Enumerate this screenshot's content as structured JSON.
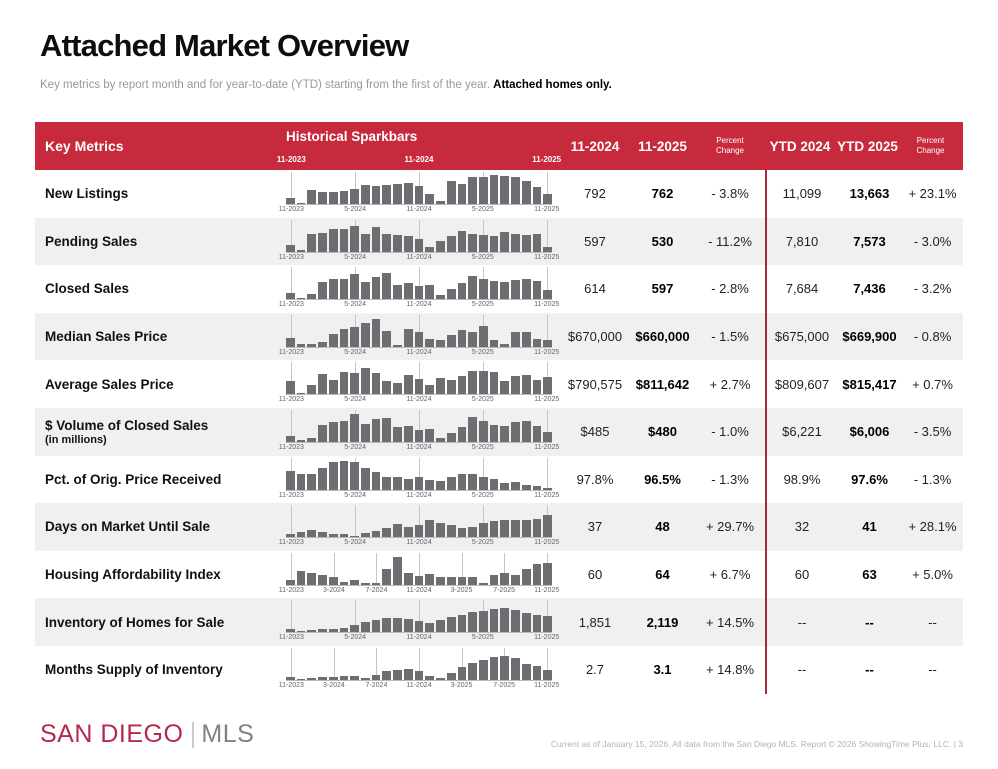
{
  "page": {
    "title": "Attached Market Overview",
    "subtitle": "Key metrics by report month and for year-to-date (YTD) starting from the first of the year.",
    "subtitle_emphasis": "Attached homes only."
  },
  "colors": {
    "header_bg": "#C72A3C",
    "ytd_divider": "#AB2740",
    "bar_gray": "#6D6E71",
    "alt_row_bg": "#F0F0F1",
    "logo_red": "#B5294C",
    "logo_gray": "#808285"
  },
  "table": {
    "header": {
      "key_metrics_label": "Key Metrics",
      "sparkbars_label": "Historical Sparkbars",
      "sparkbar_years": [
        "11-2023",
        "11-2024",
        "11-2025"
      ],
      "col_month_1": "11-2024",
      "col_month_2": "11-2025",
      "col_pct_line1": "Percent",
      "col_pct_line2": "Change",
      "col_ytd_1": "YTD 2024",
      "col_ytd_2": "YTD 2025"
    },
    "rows": [
      {
        "metric": "New Listings",
        "note": "",
        "m1": "792",
        "m2": "762",
        "mc": "- 3.8%",
        "y1": "11,099",
        "y2": "13,663",
        "yc": "+ 23.1%",
        "spark": {
          "type": "bar",
          "ticks": [
            "11-2023",
            "5-2024",
            "11-2024",
            "5-2025",
            "11-2025"
          ],
          "bars": [
            20,
            5,
            48,
            40,
            43,
            46,
            53,
            65,
            62,
            65,
            68,
            73,
            62,
            33,
            12,
            80,
            68,
            92,
            94,
            100,
            96,
            92,
            78,
            60,
            35
          ]
        }
      },
      {
        "metric": "Pending Sales",
        "note": "",
        "m1": "597",
        "m2": "530",
        "mc": "- 11.2%",
        "y1": "7,810",
        "y2": "7,573",
        "yc": "- 3.0%",
        "spark": {
          "type": "bar",
          "ticks": [
            "11-2023",
            "5-2024",
            "11-2024",
            "5-2025",
            "11-2025"
          ],
          "bars": [
            22,
            4,
            60,
            64,
            77,
            79,
            88,
            62,
            86,
            62,
            58,
            55,
            42,
            15,
            38,
            55,
            72,
            60,
            58,
            55,
            68,
            62,
            58,
            60,
            15
          ]
        }
      },
      {
        "metric": "Closed Sales",
        "note": "",
        "m1": "614",
        "m2": "597",
        "mc": "- 2.8%",
        "y1": "7,684",
        "y2": "7,436",
        "yc": "- 3.2%",
        "spark": {
          "type": "bar",
          "ticks": [
            "11-2023",
            "5-2024",
            "11-2024",
            "5-2025",
            "11-2025"
          ],
          "bars": [
            20,
            5,
            18,
            58,
            70,
            68,
            88,
            58,
            75,
            92,
            50,
            55,
            45,
            50,
            15,
            35,
            55,
            80,
            68,
            62,
            60,
            65,
            70,
            62,
            32
          ]
        }
      },
      {
        "metric": "Median Sales Price",
        "note": "",
        "m1": "$670,000",
        "m2": "$660,000",
        "mc": "- 1.5%",
        "y1": "$675,000",
        "y2": "$669,900",
        "yc": "- 0.8%",
        "spark": {
          "type": "bar",
          "ticks": [
            "11-2023",
            "5-2024",
            "11-2024",
            "5-2025",
            "11-2025"
          ],
          "bars": [
            32,
            8,
            8,
            15,
            45,
            60,
            68,
            82,
            95,
            55,
            6,
            62,
            52,
            28,
            25,
            42,
            58,
            52,
            72,
            25,
            8,
            50,
            52,
            28,
            22
          ]
        }
      },
      {
        "metric": "Average Sales Price",
        "note": "",
        "m1": "$790,575",
        "m2": "$811,642",
        "mc": "+ 2.7%",
        "y1": "$809,607",
        "y2": "$815,417",
        "yc": "+ 0.7%",
        "spark": {
          "type": "bar",
          "ticks": [
            "11-2023",
            "5-2024",
            "11-2024",
            "5-2025",
            "11-2025"
          ],
          "bars": [
            45,
            5,
            32,
            72,
            48,
            78,
            75,
            92,
            75,
            45,
            38,
            68,
            52,
            32,
            55,
            48,
            65,
            82,
            80,
            78,
            45,
            62,
            68,
            50,
            60
          ]
        }
      },
      {
        "metric": "$ Volume of Closed Sales",
        "note": "(in millions)",
        "m1": "$485",
        "m2": "$480",
        "mc": "- 1.0%",
        "y1": "$6,221",
        "y2": "$6,006",
        "yc": "- 3.5%",
        "spark": {
          "type": "bar",
          "ticks": [
            "11-2023",
            "5-2024",
            "11-2024",
            "5-2025",
            "11-2025"
          ],
          "bars": [
            22,
            6,
            15,
            60,
            70,
            72,
            95,
            62,
            78,
            82,
            50,
            55,
            42,
            45,
            15,
            32,
            52,
            85,
            72,
            58,
            55,
            68,
            72,
            55,
            35
          ]
        }
      },
      {
        "metric": "Pct. of Orig. Price Received",
        "note": "",
        "m1": "97.8%",
        "m2": "96.5%",
        "mc": "- 1.3%",
        "y1": "98.9%",
        "y2": "97.6%",
        "yc": "- 1.3%",
        "spark": {
          "type": "bar",
          "ticks": [
            "11-2023",
            "5-2024",
            "11-2024",
            "5-2025",
            "11-2025"
          ],
          "bars": [
            65,
            55,
            52,
            75,
            95,
            100,
            95,
            75,
            62,
            45,
            42,
            38,
            42,
            32,
            28,
            45,
            52,
            52,
            42,
            35,
            22,
            25,
            15,
            12,
            5
          ]
        }
      },
      {
        "metric": "Days on Market Until Sale",
        "note": "",
        "m1": "37",
        "m2": "48",
        "mc": "+ 29.7%",
        "y1": "32",
        "y2": "41",
        "yc": "+ 28.1%",
        "spark": {
          "type": "bar",
          "ticks": [
            "11-2023",
            "5-2024",
            "11-2024",
            "5-2025",
            "11-2025"
          ],
          "bars": [
            10,
            18,
            25,
            18,
            12,
            10,
            5,
            15,
            22,
            32,
            45,
            35,
            42,
            58,
            48,
            42,
            30,
            35,
            48,
            55,
            58,
            58,
            60,
            62,
            78
          ]
        }
      },
      {
        "metric": "Housing Affordability Index",
        "note": "",
        "m1": "60",
        "m2": "64",
        "mc": "+ 6.7%",
        "y1": "60",
        "y2": "63",
        "yc": "+ 5.0%",
        "spark": {
          "type": "bar",
          "ticks": [
            "11-2023",
            "3-2024",
            "7-2024",
            "11-2024",
            "3-2025",
            "7-2025",
            "11-2025"
          ],
          "bars": [
            18,
            48,
            42,
            35,
            28,
            8,
            18,
            5,
            5,
            55,
            95,
            42,
            30,
            38,
            28,
            28,
            28,
            28,
            5,
            35,
            42,
            35,
            55,
            72,
            75
          ]
        }
      },
      {
        "metric": "Inventory of Homes for Sale",
        "note": "",
        "m1": "1,851",
        "m2": "2,119",
        "mc": "+ 14.5%",
        "y1": "--",
        "y2": "--",
        "yc": "--",
        "spark": {
          "type": "bar",
          "ticks": [
            "11-2023",
            "5-2024",
            "11-2024",
            "5-2025",
            "11-2025"
          ],
          "bars": [
            12,
            5,
            8,
            10,
            10,
            15,
            25,
            35,
            42,
            48,
            48,
            45,
            38,
            32,
            42,
            52,
            60,
            70,
            75,
            82,
            85,
            78,
            68,
            60,
            55
          ]
        }
      },
      {
        "metric": "Months Supply of Inventory",
        "note": "",
        "m1": "2.7",
        "m2": "3.1",
        "mc": "+ 14.8%",
        "y1": "--",
        "y2": "--",
        "yc": "--",
        "spark": {
          "type": "bar",
          "ticks": [
            "11-2023",
            "3-2024",
            "7-2024",
            "11-2024",
            "3-2025",
            "7-2025",
            "11-2025"
          ],
          "bars": [
            10,
            4,
            6,
            10,
            10,
            15,
            12,
            8,
            18,
            32,
            35,
            38,
            32,
            12,
            8,
            25,
            45,
            58,
            68,
            78,
            82,
            75,
            55,
            48,
            35
          ]
        }
      }
    ]
  },
  "footer": {
    "logo_primary": "SAN DIEGO",
    "logo_secondary": "MLS",
    "disclaimer": "Current as of January 15, 2026. All data from the San Diego MLS. Report © 2026 ShowingTime Plus, LLC.  |  3"
  }
}
